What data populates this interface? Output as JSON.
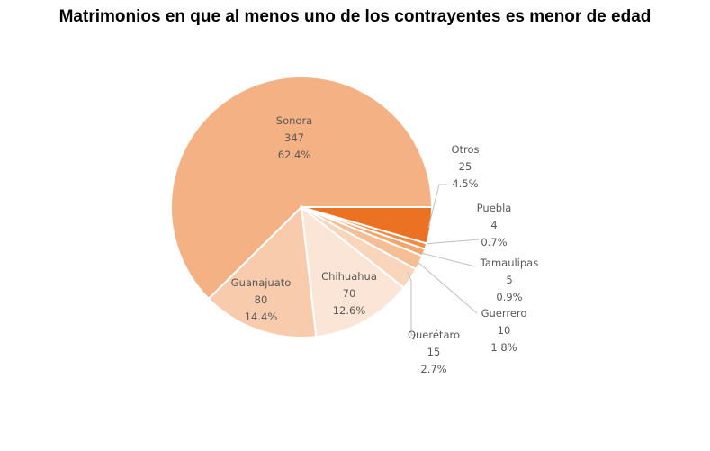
{
  "chart_data": {
    "type": "pie",
    "title": "Matrimonios en que al menos uno de los contrayentes es menor de edad",
    "slices": [
      {
        "label": "Sonora",
        "value": 347,
        "percent": "62.4%",
        "color": "#F4B183"
      },
      {
        "label": "Guanajuato",
        "value": 80,
        "percent": "14.4%",
        "color": "#F8CBAD"
      },
      {
        "label": "Chihuahua",
        "value": 70,
        "percent": "12.6%",
        "color": "#FBE5D6"
      },
      {
        "label": "Querétaro",
        "value": 15,
        "percent": "2.7%",
        "color": "#F9D5BC"
      },
      {
        "label": "Guerrero",
        "value": 10,
        "percent": "1.8%",
        "color": "#F6BE95"
      },
      {
        "label": "Tamaulipas",
        "value": 5,
        "percent": "0.9%",
        "color": "#F4A56E"
      },
      {
        "label": "Puebla",
        "value": 4,
        "percent": "0.7%",
        "color": "#F08A45"
      },
      {
        "label": "Otros",
        "value": 25,
        "percent": "4.5%",
        "color": "#EC7223"
      }
    ],
    "start_angle": "east, counterclockwise",
    "legend": "none"
  }
}
